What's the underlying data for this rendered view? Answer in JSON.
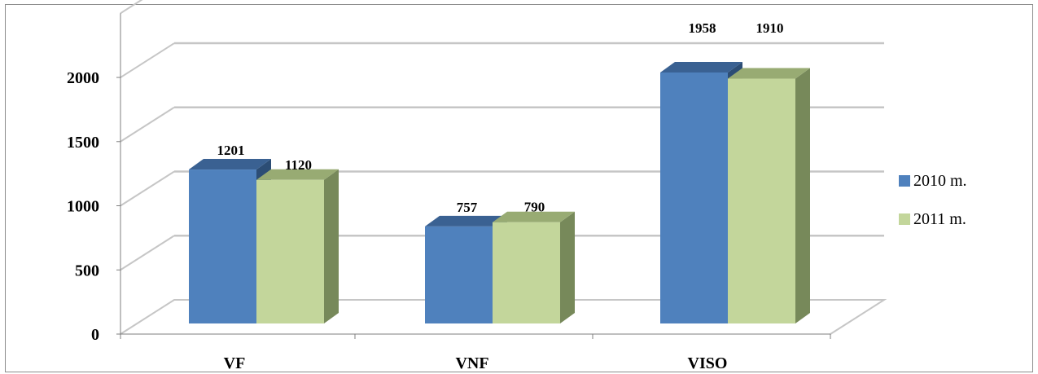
{
  "chart_data": {
    "type": "bar",
    "categories": [
      "VF",
      "VNF",
      "VISO"
    ],
    "series": [
      {
        "name": "2010 m.",
        "values": [
          1201,
          757,
          1958
        ]
      },
      {
        "name": "2011 m.",
        "values": [
          1120,
          790,
          1910
        ]
      }
    ],
    "y_ticks": [
      "0",
      "500",
      "1000",
      "1500",
      "2000"
    ],
    "ylim": [
      0,
      2500
    ],
    "grid": true,
    "legend_position": "right",
    "style": "3d-clustered-column",
    "colors": {
      "series_2010_front": "#4f81bd",
      "series_2010_side": "#2c4d75",
      "series_2010_top": "#3a6192",
      "series_2011_front": "#c3d69b",
      "series_2011_side": "#77895a",
      "series_2011_top": "#98ab73",
      "gridline": "#c6c6c6"
    }
  }
}
